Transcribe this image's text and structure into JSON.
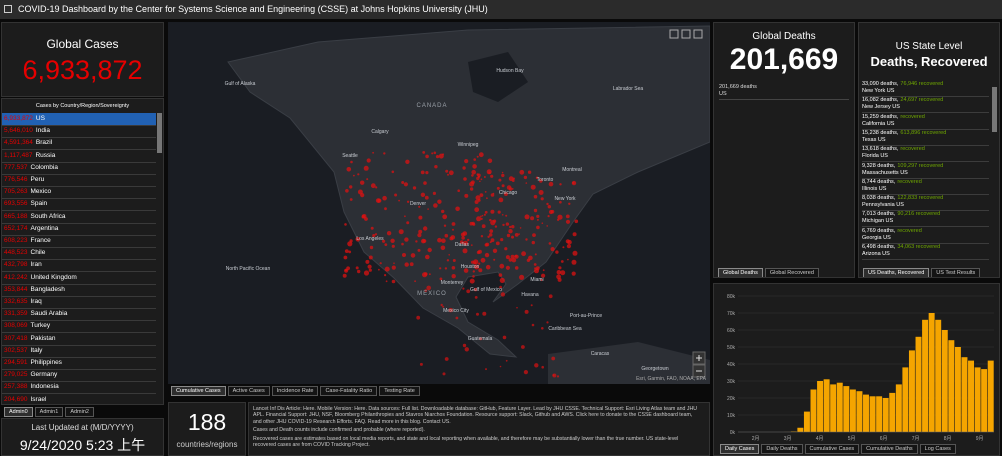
{
  "header": {
    "title": "COVID-19 Dashboard by the Center for Systems Science and Engineering (CSSE) at Johns Hopkins University (JHU)"
  },
  "global_cases": {
    "label": "Global Cases",
    "value": "6,933,872"
  },
  "country_list": {
    "title": "Cases by Country/Region/Sovereignty",
    "rows": [
      {
        "count": "6,933,872",
        "name": "US"
      },
      {
        "count": "5,646,010",
        "name": "India"
      },
      {
        "count": "4,591,364",
        "name": "Brazil"
      },
      {
        "count": "1,117,487",
        "name": "Russia"
      },
      {
        "count": "777,537",
        "name": "Colombia"
      },
      {
        "count": "776,546",
        "name": "Peru"
      },
      {
        "count": "705,263",
        "name": "Mexico"
      },
      {
        "count": "693,556",
        "name": "Spain"
      },
      {
        "count": "665,188",
        "name": "South Africa"
      },
      {
        "count": "652,174",
        "name": "Argentina"
      },
      {
        "count": "608,223",
        "name": "France"
      },
      {
        "count": "448,523",
        "name": "Chile"
      },
      {
        "count": "432,798",
        "name": "Iran"
      },
      {
        "count": "412,242",
        "name": "United Kingdom"
      },
      {
        "count": "353,844",
        "name": "Bangladesh"
      },
      {
        "count": "332,635",
        "name": "Iraq"
      },
      {
        "count": "331,359",
        "name": "Saudi Arabia"
      },
      {
        "count": "308,069",
        "name": "Turkey"
      },
      {
        "count": "307,418",
        "name": "Pakistan"
      },
      {
        "count": "302,537",
        "name": "Italy"
      },
      {
        "count": "294,591",
        "name": "Philippines"
      },
      {
        "count": "279,025",
        "name": "Germany"
      },
      {
        "count": "257,388",
        "name": "Indonesia"
      },
      {
        "count": "204,690",
        "name": "Israel"
      }
    ],
    "tabs": [
      "Admin0",
      "Admin1",
      "Admin2"
    ]
  },
  "last_updated": {
    "label": "Last Updated at (M/D/YYYY)",
    "value": "9/24/2020 5:23 上午"
  },
  "map": {
    "labels": [
      "CANADA",
      "Gulf of Alaska",
      "Hudson Bay",
      "Labrador Sea",
      "Calgary",
      "Seattle",
      "Winnipeg",
      "Chicago",
      "Toronto",
      "Montreal",
      "New York",
      "Denver",
      "Los Angeles",
      "Dallas",
      "Houston",
      "Miami",
      "North Pacific Ocean",
      "MEXICO",
      "Monterrey",
      "Gulf of Mexico",
      "Havana",
      "Mexico City",
      "Caribbean Sea",
      "Port-au-Prince",
      "Guatemala",
      "Caracas",
      "Georgetown"
    ],
    "attribution": "Esri, Garmin, FAO, NOAA, EPA",
    "tabs": [
      "Cumulative Cases",
      "Active Cases",
      "Incidence Rate",
      "Case-Fatality Ratio",
      "Testing Rate"
    ]
  },
  "countries": {
    "value": "188",
    "label": "countries/regions"
  },
  "info": {
    "paragraphs": [
      "Lancet Inf Dis Article: Here. Mobile Version: Here. Data sources: Full list. Downloadable database: GitHub, Feature Layer. Lead by JHU CSSE. Technical Support: Esri Living Atlas team and JHU APL. Financial Support: JHU, NSF, Bloomberg Philanthropies and Stavros Niarchos Foundation. Resource support: Slack, Github and AWS. Click here to donate to the CSSE dashboard team, and other JHU COVID-19 Research Efforts. FAQ. Read more in this blog. Contact US.",
      "Cases and Death counts include confirmed and probable (where reported).",
      "Recovered cases are estimates based on local media reports, and state and local reporting when available, and therefore may be substantially lower than the true number. US state-level recovered cases are from COVID Tracking Project."
    ]
  },
  "global_deaths": {
    "label": "Global Deaths",
    "value": "201,669",
    "detail": "201,669 deaths",
    "region": "US",
    "tabs": [
      "Global Deaths",
      "Global Recovered"
    ]
  },
  "us_states": {
    "title": "US State Level",
    "subtitle": "Deaths, Recovered",
    "rows": [
      {
        "deaths": "33,090 deaths,",
        "recovered": "76,946 recovered",
        "state": "New York US"
      },
      {
        "deaths": "16,082 deaths,",
        "recovered": "24,697 recovered",
        "state": "New Jersey US"
      },
      {
        "deaths": "15,259 deaths,",
        "recovered": "recovered",
        "state": "California US"
      },
      {
        "deaths": "15,238 deaths,",
        "recovered": "613,896 recovered",
        "state": "Texas US"
      },
      {
        "deaths": "13,618 deaths,",
        "recovered": "recovered",
        "state": "Florida US"
      },
      {
        "deaths": "9,328 deaths,",
        "recovered": "109,297 recovered",
        "state": "Massachusetts US"
      },
      {
        "deaths": "8,744 deaths,",
        "recovered": "recovered",
        "state": "Illinois US"
      },
      {
        "deaths": "8,038 deaths,",
        "recovered": "122,833 recovered",
        "state": "Pennsylvania US"
      },
      {
        "deaths": "7,013 deaths,",
        "recovered": "90,216 recovered",
        "state": "Michigan US"
      },
      {
        "deaths": "6,769 deaths,",
        "recovered": "recovered",
        "state": "Georgia US"
      },
      {
        "deaths": "6,498 deaths,",
        "recovered": "34,063 recovered",
        "state": "Arizona US"
      }
    ],
    "tabs": [
      "US Deaths, Recovered",
      "US Test Results"
    ]
  },
  "daily_chart": {
    "type": "bar",
    "color": "#f5a500",
    "values": [
      0,
      0,
      0,
      0,
      0,
      0,
      0,
      30,
      300,
      2500,
      12000,
      25000,
      30000,
      31000,
      28000,
      29000,
      27000,
      25000,
      24000,
      22000,
      21000,
      21000,
      20000,
      23000,
      28000,
      38000,
      48000,
      56000,
      66000,
      70000,
      66000,
      60000,
      54000,
      50000,
      44000,
      42000,
      38000,
      37000,
      42000
    ],
    "ylim": [
      0,
      80000
    ],
    "yticks": [
      {
        "value": 0,
        "label": "0k"
      },
      {
        "value": 10000,
        "label": "10k"
      },
      {
        "value": 20000,
        "label": "20k"
      },
      {
        "value": 30000,
        "label": "30k"
      },
      {
        "value": 40000,
        "label": "40k"
      },
      {
        "value": 50000,
        "label": "50k"
      },
      {
        "value": 60000,
        "label": "60k"
      },
      {
        "value": 70000,
        "label": "70k"
      },
      {
        "value": 80000,
        "label": "80k"
      }
    ],
    "month_labels": [
      "2月",
      "3月",
      "4月",
      "5月",
      "6月",
      "7月",
      "8月",
      "9月"
    ],
    "tabs": [
      "Daily Cases",
      "Daily Deaths",
      "Cumulative Cases",
      "Cumulative Deaths",
      "Log Cases"
    ]
  }
}
